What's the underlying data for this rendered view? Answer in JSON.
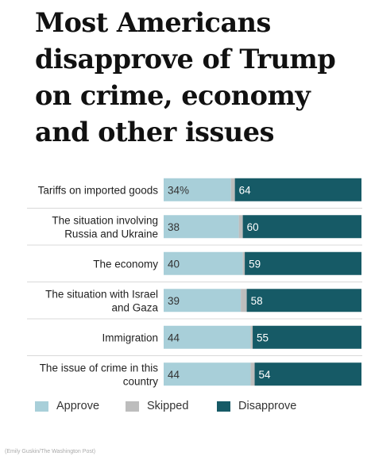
{
  "title_lines": [
    "Most Americans",
    "disapprove of Trump",
    "on crime, economy",
    "and other issues"
  ],
  "credit": "(Emily Guskin/The Washington Post)",
  "colors": {
    "approve": "#a8cfd9",
    "skipped": "#bdbdbd",
    "disapprove": "#165a66",
    "separator": "#d8d8d8"
  },
  "chart_data": {
    "type": "bar",
    "stacked": true,
    "orientation": "horizontal",
    "xlim": [
      0,
      100
    ],
    "grid": false,
    "legend_position": "bottom",
    "categories": [
      [
        "Tariffs on imported goods"
      ],
      [
        "The situation involving",
        "Russia and Ukraine"
      ],
      [
        "The economy"
      ],
      [
        "The situation with Israel",
        "and Gaza"
      ],
      [
        "Immigration"
      ],
      [
        "The issue of crime in this",
        "country"
      ]
    ],
    "series": [
      {
        "name": "Approve",
        "values": [
          34,
          38,
          40,
          39,
          44,
          44
        ],
        "labels": [
          "34%",
          "38",
          "40",
          "39",
          "44",
          "44"
        ]
      },
      {
        "name": "Skipped",
        "values": [
          2,
          2,
          1,
          3,
          1,
          2
        ]
      },
      {
        "name": "Disapprove",
        "values": [
          64,
          60,
          59,
          58,
          55,
          54
        ],
        "labels": [
          "64",
          "60",
          "59",
          "58",
          "55",
          "54"
        ]
      }
    ]
  }
}
